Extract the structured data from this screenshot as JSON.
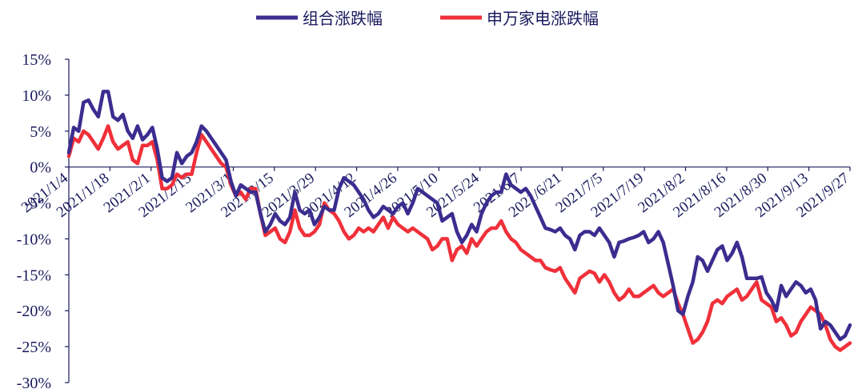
{
  "chart_data": {
    "type": "line",
    "legend_position": "top-center",
    "ylim": [
      -30,
      15
    ],
    "y_ticks": [
      "15%",
      "10%",
      "5%",
      "0%",
      "-5%",
      "-10%",
      "-15%",
      "-20%",
      "-25%",
      "-30%"
    ],
    "x_ticks": [
      "2021/1/4",
      "2021/1/18",
      "2021/2/1",
      "2021/2/15",
      "2021/3/1",
      "2021/3/15",
      "2021/3/29",
      "2021/4/12",
      "2021/4/26",
      "2021/5/10",
      "2021/5/24",
      "2021/6/7",
      "2021/6/21",
      "2021/7/5",
      "2021/7/19",
      "2021/8/2",
      "2021/8/16",
      "2021/8/30",
      "2021/9/13",
      "2021/9/27"
    ],
    "colors": {
      "series1": "#3b2d8f",
      "series2": "#f0303a",
      "axis": "#1a1a5e"
    },
    "series": [
      {
        "name": "组合涨跌幅",
        "points": [
          [
            0,
            2.0
          ],
          [
            1,
            5.5
          ],
          [
            2,
            5.0
          ],
          [
            3,
            9.0
          ],
          [
            4,
            9.3
          ],
          [
            5,
            8.0
          ],
          [
            6,
            7.0
          ],
          [
            7,
            10.5
          ],
          [
            8,
            10.5
          ],
          [
            9,
            7.0
          ],
          [
            10,
            6.5
          ],
          [
            11,
            7.3
          ],
          [
            12,
            5.0
          ],
          [
            13,
            4.0
          ],
          [
            14,
            5.7
          ],
          [
            15,
            3.8
          ],
          [
            16,
            4.5
          ],
          [
            17,
            5.5
          ],
          [
            18,
            2.5
          ],
          [
            19,
            -1.5
          ],
          [
            20,
            -2.0
          ],
          [
            21,
            -1.5
          ],
          [
            22,
            2.0
          ],
          [
            23,
            0.5
          ],
          [
            24,
            1.5
          ],
          [
            25,
            2.0
          ],
          [
            26,
            3.5
          ],
          [
            27,
            5.7
          ],
          [
            28,
            5.0
          ],
          [
            29,
            4.0
          ],
          [
            30,
            3.0
          ],
          [
            31,
            2.0
          ],
          [
            32,
            1.0
          ],
          [
            33,
            -2.0
          ],
          [
            34,
            -4.0
          ],
          [
            35,
            -2.5
          ],
          [
            36,
            -3.0
          ],
          [
            37,
            -3.5
          ],
          [
            38,
            -3.5
          ],
          [
            39,
            -6.5
          ],
          [
            40,
            -9.0
          ],
          [
            41,
            -8.0
          ],
          [
            42,
            -6.5
          ],
          [
            43,
            -7.5
          ],
          [
            44,
            -8.0
          ],
          [
            45,
            -7.0
          ],
          [
            46,
            -3.5
          ],
          [
            47,
            -6.0
          ],
          [
            48,
            -6.5
          ],
          [
            49,
            -6.0
          ],
          [
            50,
            -8.0
          ],
          [
            51,
            -7.0
          ],
          [
            52,
            -5.5
          ],
          [
            53,
            -6.0
          ],
          [
            54,
            -6.0
          ],
          [
            55,
            -3.0
          ],
          [
            56,
            -1.5
          ],
          [
            57,
            -2.0
          ],
          [
            58,
            -2.5
          ],
          [
            59,
            -3.5
          ],
          [
            60,
            -4.5
          ],
          [
            61,
            -6.0
          ],
          [
            62,
            -7.0
          ],
          [
            63,
            -6.5
          ],
          [
            64,
            -5.5
          ],
          [
            65,
            -6.0
          ],
          [
            66,
            -6.5
          ],
          [
            67,
            -5.5
          ],
          [
            68,
            -5.0
          ],
          [
            69,
            -6.5
          ],
          [
            70,
            -5.0
          ],
          [
            71,
            -3.0
          ],
          [
            72,
            -3.5
          ],
          [
            73,
            -4.0
          ],
          [
            74,
            -4.5
          ],
          [
            75,
            -5.0
          ],
          [
            76,
            -7.5
          ],
          [
            77,
            -7.0
          ],
          [
            78,
            -6.5
          ],
          [
            79,
            -9.0
          ],
          [
            80,
            -10.5
          ],
          [
            81,
            -9.5
          ],
          [
            82,
            -8.0
          ],
          [
            83,
            -9.0
          ],
          [
            84,
            -6.5
          ],
          [
            85,
            -5.0
          ],
          [
            86,
            -4.0
          ],
          [
            87,
            -3.5
          ],
          [
            88,
            -3.5
          ],
          [
            89,
            -1.0
          ],
          [
            90,
            -2.5
          ],
          [
            91,
            -3.0
          ],
          [
            92,
            -3.5
          ],
          [
            93,
            -3.0
          ],
          [
            94,
            -4.0
          ],
          [
            95,
            -5.5
          ],
          [
            96,
            -7.0
          ],
          [
            97,
            -8.5
          ],
          [
            98,
            -8.7
          ],
          [
            99,
            -9.0
          ],
          [
            100,
            -8.5
          ],
          [
            101,
            -9.5
          ],
          [
            102,
            -10.0
          ],
          [
            103,
            -11.5
          ],
          [
            104,
            -9.5
          ],
          [
            105,
            -9.0
          ],
          [
            106,
            -9.0
          ],
          [
            107,
            -9.5
          ],
          [
            108,
            -8.5
          ],
          [
            109,
            -9.5
          ],
          [
            110,
            -10.5
          ],
          [
            111,
            -12.5
          ],
          [
            112,
            -10.5
          ],
          [
            113,
            -10.3
          ],
          [
            114,
            -10.0
          ],
          [
            115,
            -9.8
          ],
          [
            116,
            -9.5
          ],
          [
            117,
            -9.0
          ],
          [
            118,
            -10.5
          ],
          [
            119,
            -10.0
          ],
          [
            120,
            -9.0
          ],
          [
            121,
            -10.5
          ],
          [
            122,
            -13.5
          ],
          [
            123,
            -16.5
          ],
          [
            124,
            -20.0
          ],
          [
            125,
            -20.5
          ],
          [
            126,
            -18.0
          ],
          [
            127,
            -16.0
          ],
          [
            128,
            -12.5
          ],
          [
            129,
            -13.0
          ],
          [
            130,
            -14.5
          ],
          [
            131,
            -13.0
          ],
          [
            132,
            -11.5
          ],
          [
            133,
            -11.0
          ],
          [
            134,
            -13.0
          ],
          [
            135,
            -12.0
          ],
          [
            136,
            -10.5
          ],
          [
            137,
            -12.5
          ],
          [
            138,
            -15.5
          ],
          [
            139,
            -15.5
          ],
          [
            140,
            -15.5
          ],
          [
            141,
            -15.3
          ],
          [
            142,
            -17.5
          ],
          [
            143,
            -18.5
          ],
          [
            144,
            -20.0
          ],
          [
            145,
            -16.5
          ],
          [
            146,
            -18.0
          ],
          [
            147,
            -17.0
          ],
          [
            148,
            -16.0
          ],
          [
            149,
            -16.5
          ],
          [
            150,
            -17.5
          ],
          [
            151,
            -17.0
          ],
          [
            152,
            -18.5
          ],
          [
            153,
            -22.5
          ],
          [
            154,
            -21.5
          ],
          [
            155,
            -22.0
          ],
          [
            156,
            -23.0
          ],
          [
            157,
            -24.0
          ],
          [
            158,
            -23.5
          ],
          [
            159,
            -22.0
          ]
        ]
      },
      {
        "name": "申万家电涨跌幅",
        "points": [
          [
            0,
            1.5
          ],
          [
            1,
            4.0
          ],
          [
            2,
            3.5
          ],
          [
            3,
            5.0
          ],
          [
            4,
            4.5
          ],
          [
            5,
            3.5
          ],
          [
            6,
            2.5
          ],
          [
            7,
            4.0
          ],
          [
            8,
            5.7
          ],
          [
            9,
            3.5
          ],
          [
            10,
            2.5
          ],
          [
            11,
            3.0
          ],
          [
            12,
            3.5
          ],
          [
            13,
            1.0
          ],
          [
            14,
            0.5
          ],
          [
            15,
            3.0
          ],
          [
            16,
            3.0
          ],
          [
            17,
            3.5
          ],
          [
            18,
            1.0
          ],
          [
            19,
            -3.0
          ],
          [
            20,
            -3.0
          ],
          [
            21,
            -2.5
          ],
          [
            22,
            -1.0
          ],
          [
            23,
            -1.5
          ],
          [
            24,
            -1.0
          ],
          [
            25,
            -1.0
          ],
          [
            26,
            2.0
          ],
          [
            27,
            4.5
          ],
          [
            28,
            3.5
          ],
          [
            29,
            2.5
          ],
          [
            30,
            1.5
          ],
          [
            31,
            0.5
          ],
          [
            32,
            0.0
          ],
          [
            33,
            -2.5
          ],
          [
            34,
            -4.0
          ],
          [
            35,
            -3.5
          ],
          [
            36,
            -4.5
          ],
          [
            37,
            -3.0
          ],
          [
            38,
            -3.0
          ],
          [
            39,
            -6.5
          ],
          [
            40,
            -9.5
          ],
          [
            41,
            -9.0
          ],
          [
            42,
            -8.5
          ],
          [
            43,
            -10.0
          ],
          [
            44,
            -10.5
          ],
          [
            45,
            -9.0
          ],
          [
            46,
            -6.0
          ],
          [
            47,
            -8.5
          ],
          [
            48,
            -9.5
          ],
          [
            49,
            -9.5
          ],
          [
            50,
            -9.0
          ],
          [
            51,
            -8.0
          ],
          [
            52,
            -5.0
          ],
          [
            53,
            -6.0
          ],
          [
            54,
            -6.5
          ],
          [
            55,
            -7.5
          ],
          [
            56,
            -9.0
          ],
          [
            57,
            -10.0
          ],
          [
            58,
            -9.5
          ],
          [
            59,
            -8.5
          ],
          [
            60,
            -9.0
          ],
          [
            61,
            -8.5
          ],
          [
            62,
            -9.0
          ],
          [
            63,
            -8.0
          ],
          [
            64,
            -7.0
          ],
          [
            65,
            -8.5
          ],
          [
            66,
            -7.0
          ],
          [
            67,
            -8.0
          ],
          [
            68,
            -8.5
          ],
          [
            69,
            -9.0
          ],
          [
            70,
            -8.5
          ],
          [
            71,
            -9.0
          ],
          [
            72,
            -9.5
          ],
          [
            73,
            -10.0
          ],
          [
            74,
            -11.5
          ],
          [
            75,
            -11.0
          ],
          [
            76,
            -10.0
          ],
          [
            77,
            -10.0
          ],
          [
            78,
            -13.0
          ],
          [
            79,
            -11.5
          ],
          [
            80,
            -11.0
          ],
          [
            81,
            -12.0
          ],
          [
            82,
            -10.0
          ],
          [
            83,
            -11.0
          ],
          [
            84,
            -10.0
          ],
          [
            85,
            -9.0
          ],
          [
            86,
            -8.5
          ],
          [
            87,
            -8.5
          ],
          [
            88,
            -7.5
          ],
          [
            89,
            -9.0
          ],
          [
            90,
            -10.0
          ],
          [
            91,
            -10.5
          ],
          [
            92,
            -11.5
          ],
          [
            93,
            -12.0
          ],
          [
            94,
            -12.5
          ],
          [
            95,
            -13.0
          ],
          [
            96,
            -13.0
          ],
          [
            97,
            -14.0
          ],
          [
            98,
            -14.3
          ],
          [
            99,
            -14.5
          ],
          [
            100,
            -14.0
          ],
          [
            101,
            -15.5
          ],
          [
            102,
            -16.5
          ],
          [
            103,
            -17.5
          ],
          [
            104,
            -15.5
          ],
          [
            105,
            -15.0
          ],
          [
            106,
            -14.5
          ],
          [
            107,
            -14.8
          ],
          [
            108,
            -16.0
          ],
          [
            109,
            -15.0
          ],
          [
            110,
            -16.0
          ],
          [
            111,
            -17.5
          ],
          [
            112,
            -18.5
          ],
          [
            113,
            -18.0
          ],
          [
            114,
            -17.0
          ],
          [
            115,
            -18.0
          ],
          [
            116,
            -18.0
          ],
          [
            117,
            -17.5
          ],
          [
            118,
            -17.0
          ],
          [
            119,
            -16.5
          ],
          [
            120,
            -17.5
          ],
          [
            121,
            -18.0
          ],
          [
            122,
            -17.5
          ],
          [
            123,
            -17.0
          ],
          [
            124,
            -19.0
          ],
          [
            125,
            -20.5
          ],
          [
            126,
            -22.5
          ],
          [
            127,
            -24.5
          ],
          [
            128,
            -24.0
          ],
          [
            129,
            -23.0
          ],
          [
            130,
            -21.5
          ],
          [
            131,
            -19.0
          ],
          [
            132,
            -18.5
          ],
          [
            133,
            -19.0
          ],
          [
            134,
            -18.0
          ],
          [
            135,
            -17.5
          ],
          [
            136,
            -17.0
          ],
          [
            137,
            -18.5
          ],
          [
            138,
            -18.0
          ],
          [
            139,
            -17.0
          ],
          [
            140,
            -16.0
          ],
          [
            141,
            -18.5
          ],
          [
            142,
            -19.0
          ],
          [
            143,
            -19.5
          ],
          [
            144,
            -21.5
          ],
          [
            145,
            -21.0
          ],
          [
            146,
            -22.0
          ],
          [
            147,
            -23.5
          ],
          [
            148,
            -23.0
          ],
          [
            149,
            -21.5
          ],
          [
            150,
            -20.5
          ],
          [
            151,
            -19.5
          ],
          [
            152,
            -20.0
          ],
          [
            153,
            -20.5
          ],
          [
            154,
            -22.0
          ],
          [
            155,
            -24.0
          ],
          [
            156,
            -25.0
          ],
          [
            157,
            -25.5
          ],
          [
            158,
            -25.0
          ],
          [
            159,
            -24.5
          ]
        ]
      }
    ]
  }
}
